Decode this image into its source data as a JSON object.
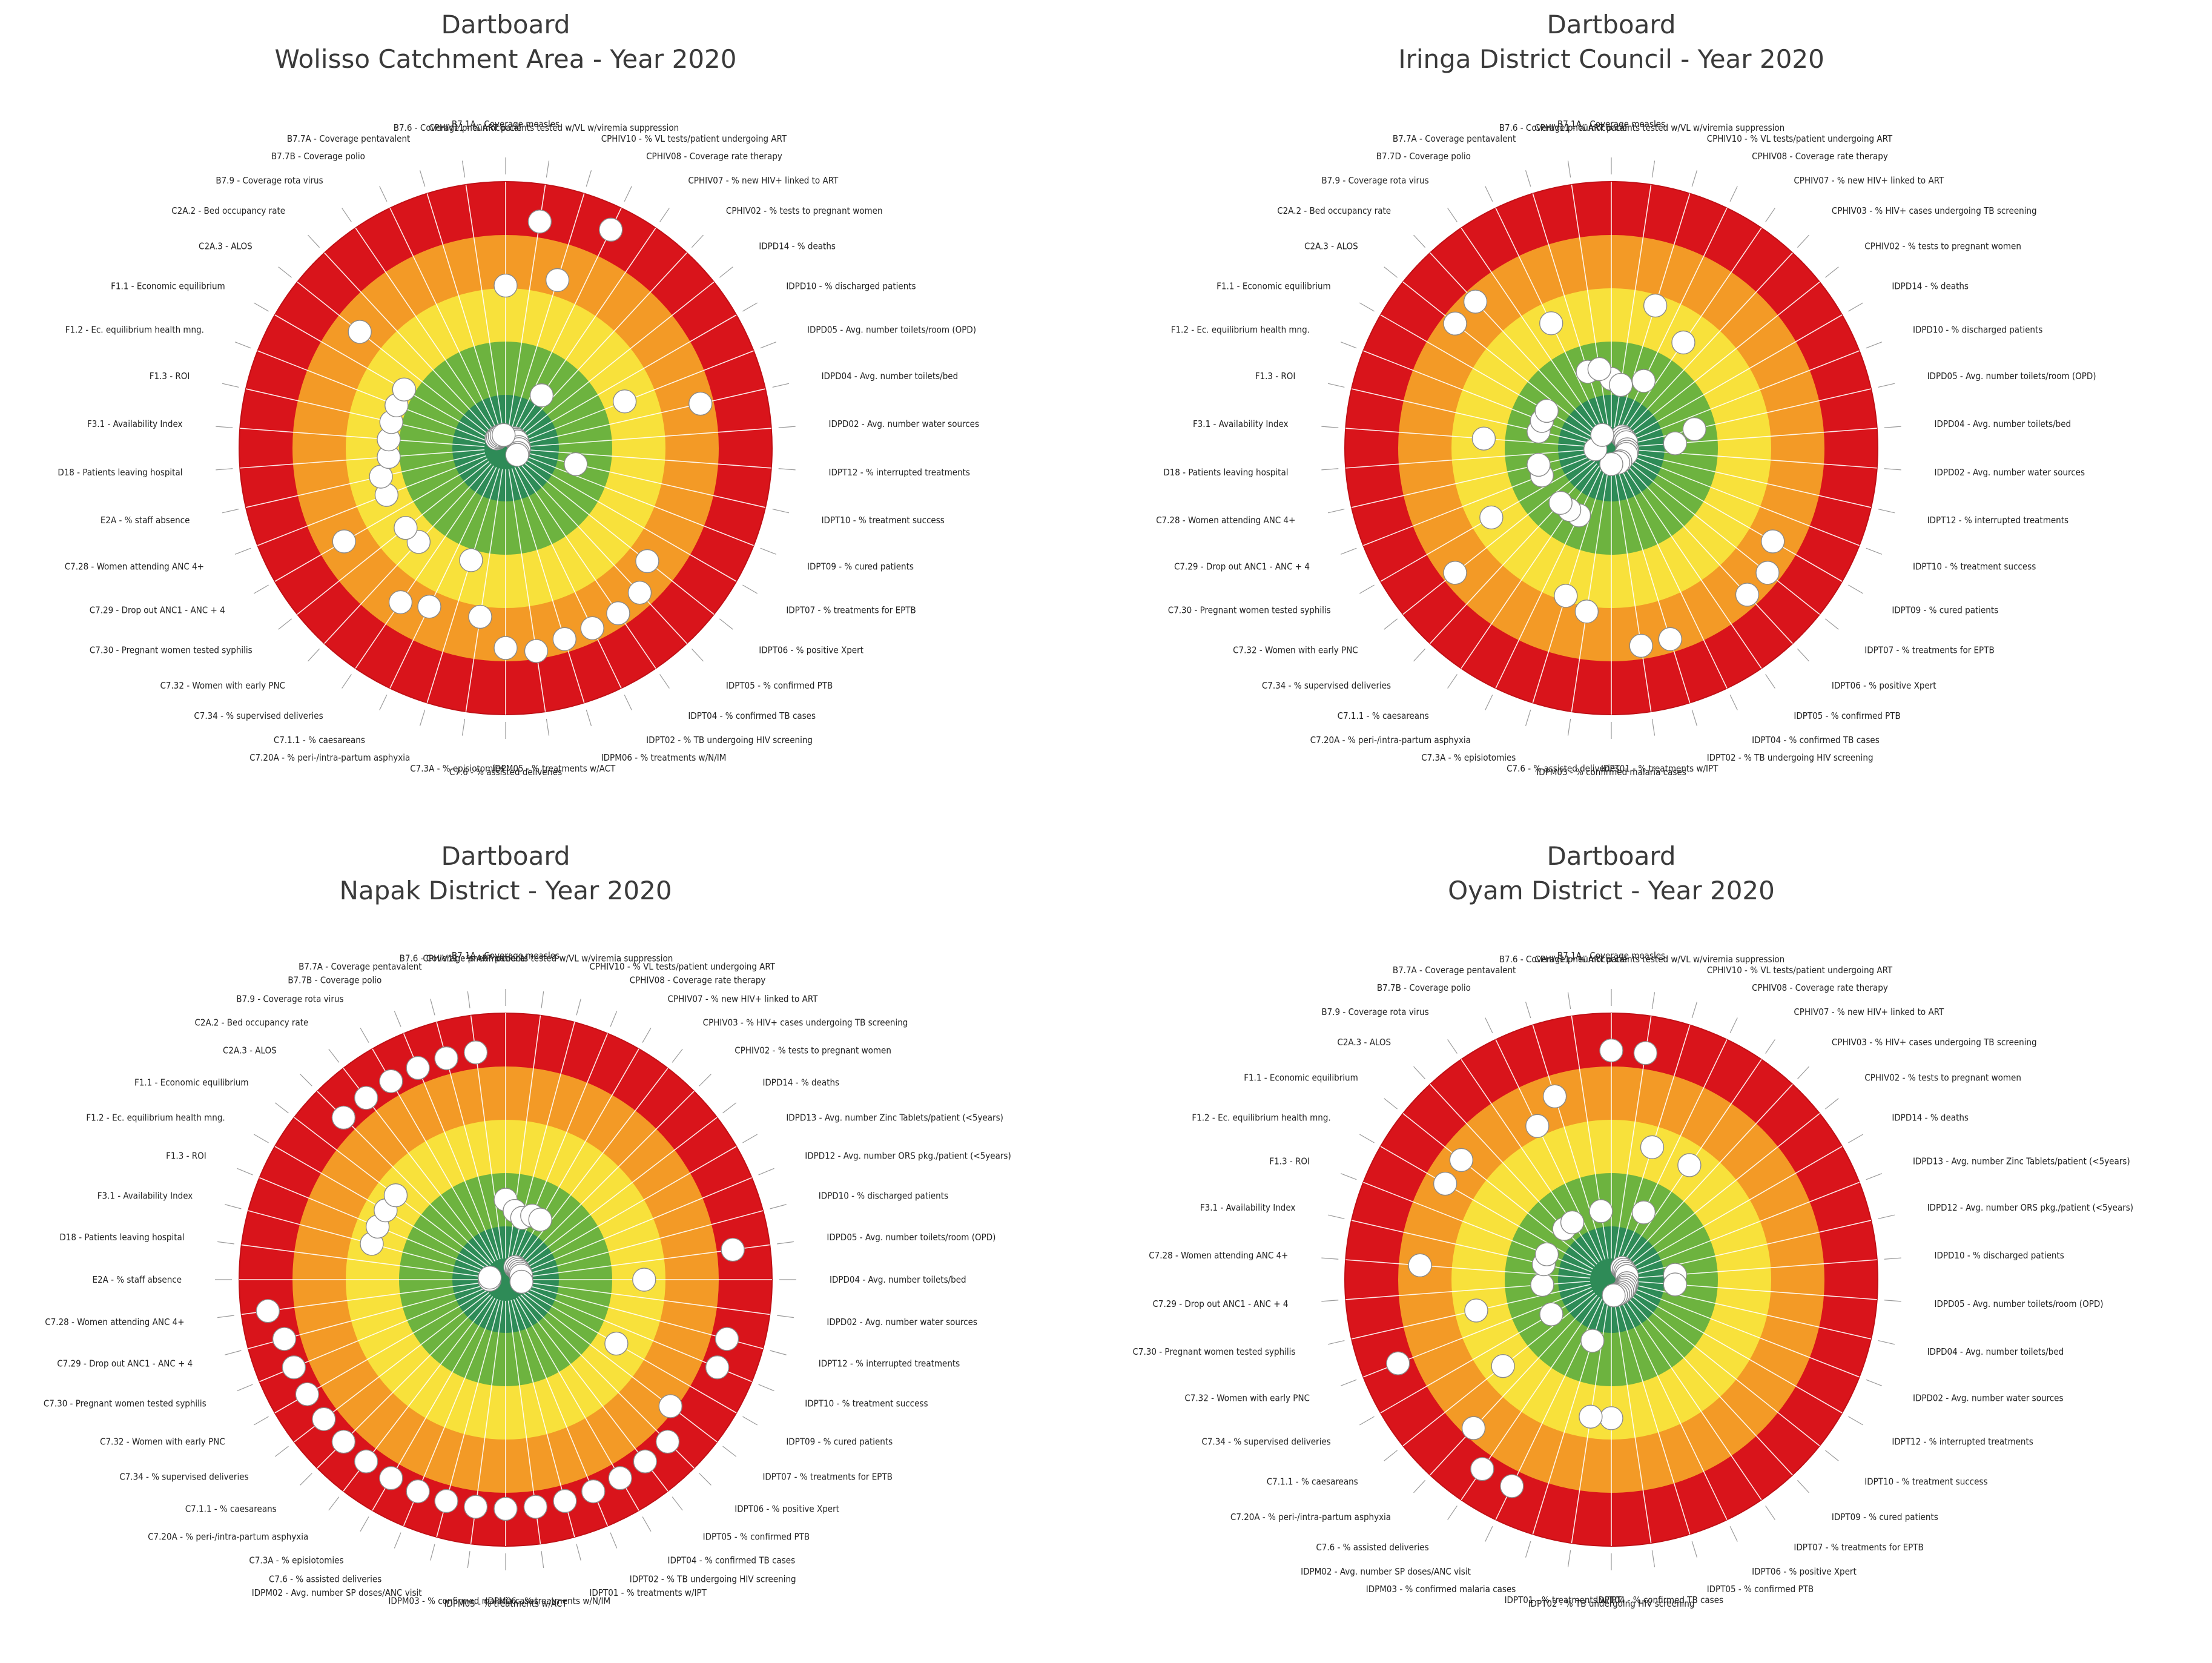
{
  "chart_data": [
    {
      "type": "dartboard",
      "title": "Dartboard",
      "subtitle": "Wolisso Catchment Area - Year 2020",
      "ring_colors": [
        "#d9141b",
        "#f39a26",
        "#f8e13b",
        "#6db33f",
        "#2e8b57"
      ],
      "ring_scale": "0 = center (best, green) ... 5 = outer edge (worst, red)",
      "indicators": [
        {
          "label": "B7.1A - Coverage measles",
          "value": 3.05
        },
        {
          "label": "CPHIV11 - % ART patients tested w/VL w/viremia suppression",
          "value": 4.3
        },
        {
          "label": "CPHIV10 - % VL tests/patient undergoing ART",
          "value": 3.3
        },
        {
          "label": "CPHIV08 - Coverage rate therapy",
          "value": 4.55
        },
        {
          "label": "CPHIV07 - % new HIV+ linked to ART",
          "value": 1.2
        },
        {
          "label": "CPHIV02 - % tests to pregnant women",
          "value": 0.25
        },
        {
          "label": "IDPD14 - % deaths",
          "value": 0.25
        },
        {
          "label": "IDPD10 - % discharged patients",
          "value": 0.25
        },
        {
          "label": "IDPD05 - Avg. number toilets/room (OPD)",
          "value": 2.4
        },
        {
          "label": "IDPD04 - Avg. number toilets/bed",
          "value": 3.75
        },
        {
          "label": "IDPD02 - Avg. number water sources",
          "value": 0.25
        },
        {
          "label": "IDPT12 - % interrupted treatments",
          "value": 0.25
        },
        {
          "label": "IDPT10 - % treatment success",
          "value": 1.35
        },
        {
          "label": "IDPT09 - % cured patients",
          "value": 0.25
        },
        {
          "label": "IDPT07 - % treatments for EPTB",
          "value": 0.25
        },
        {
          "label": "IDPT06 - % positive Xpert",
          "value": 3.4
        },
        {
          "label": "IDPT05 - % confirmed PTB",
          "value": 3.7
        },
        {
          "label": "IDPT04 - % confirmed TB cases",
          "value": 3.75
        },
        {
          "label": "IDPT02 - % TB undergoing HIV screening",
          "value": 3.75
        },
        {
          "label": "IDPM06 - % treatments w/N/IM",
          "value": 3.75
        },
        {
          "label": "IDPM05 - % treatments w/ACT",
          "value": 3.85
        },
        {
          "label": "C7.6 - % assisted deliveries",
          "value": 3.75
        },
        {
          "label": "C7.3A - % episiotomies",
          "value": 3.2
        },
        {
          "label": "C7.20A - % peri-/intra-partum asphyxia",
          "value": 2.2
        },
        {
          "label": "C7.1.1 - % caesareans",
          "value": 3.3
        },
        {
          "label": "C7.34 - % supervised deliveries",
          "value": 3.5
        },
        {
          "label": "C7.32 - Women with early PNC",
          "value": 2.4
        },
        {
          "label": "C7.30 - Pregnant women tested syphilis",
          "value": 2.4
        },
        {
          "label": "C7.29 - Drop out ANC1 - ANC + 4",
          "value": 3.5
        },
        {
          "label": "C7.28 - Women attending ANC 4+",
          "value": 2.4
        },
        {
          "label": "E2A - % staff absence",
          "value": 2.4
        },
        {
          "label": "D18 - Patients leaving hospital",
          "value": 2.2
        },
        {
          "label": "F3.1 - Availability Index",
          "value": 2.2
        },
        {
          "label": "F1.3 - ROI",
          "value": 2.2
        },
        {
          "label": "F1.2 - Ec. equilibrium health mng.",
          "value": 2.2
        },
        {
          "label": "F1.1 - Economic equilibrium",
          "value": 2.2
        },
        {
          "label": "C2A.3 - ALOS",
          "value": 3.5
        },
        {
          "label": "C2A.2 - Bed occupancy rate",
          "value": 0.25
        },
        {
          "label": "B7.9 - Coverage rota virus",
          "value": 0.25
        },
        {
          "label": "B7.7B - Coverage polio",
          "value": 0.25
        },
        {
          "label": "B7.7A - Coverage pentavalent",
          "value": 0.25
        },
        {
          "label": "B7.6 - Coverage pneumococcal",
          "value": 0.25
        }
      ]
    },
    {
      "type": "dartboard",
      "title": "Dartboard",
      "subtitle": "Iringa District Council - Year 2020",
      "ring_colors": [
        "#d9141b",
        "#f39a26",
        "#f8e13b",
        "#6db33f",
        "#2e8b57"
      ],
      "indicators": [
        {
          "label": "B7.1A - Coverage measles",
          "value": 1.3
        },
        {
          "label": "CPHIV11 - % ART patients tested w/VL w/viremia suppression",
          "value": 1.2
        },
        {
          "label": "CPHIV10 - % VL tests/patient undergoing ART",
          "value": 2.8
        },
        {
          "label": "CPHIV08 - Coverage rate therapy",
          "value": 1.4
        },
        {
          "label": "CPHIV07 - % new HIV+ linked to ART",
          "value": 2.4
        },
        {
          "label": "CPHIV03 - % HIV+ cases undergoing TB screening",
          "value": 0.3
        },
        {
          "label": "CPHIV02 - % tests to pregnant women",
          "value": 0.3
        },
        {
          "label": "IDPD14 - % deaths",
          "value": 0.3
        },
        {
          "label": "IDPD10 - % discharged patients",
          "value": 0.3
        },
        {
          "label": "IDPD05 - Avg. number toilets/room (OPD)",
          "value": 1.6
        },
        {
          "label": "IDPD04 - Avg. number toilets/bed",
          "value": 1.2
        },
        {
          "label": "IDPD02 - Avg. number water sources",
          "value": 0.3
        },
        {
          "label": "IDPT12 - % interrupted treatments",
          "value": 0.3
        },
        {
          "label": "IDPT10 - % treatment success",
          "value": 0.3
        },
        {
          "label": "IDPT09 - % cured patients",
          "value": 3.5
        },
        {
          "label": "IDPT07 - % treatments for EPTB",
          "value": 3.75
        },
        {
          "label": "IDPT06 - % positive Xpert",
          "value": 3.75
        },
        {
          "label": "IDPT05 - % confirmed PTB",
          "value": 0.3
        },
        {
          "label": "IDPT04 - % confirmed TB cases",
          "value": 0.3
        },
        {
          "label": "IDPT02 - % TB undergoing HIV screening",
          "value": 3.75
        },
        {
          "label": "IDPT01 - % treatments w/IPT",
          "value": 3.75
        },
        {
          "label": "IDPM03 - % confirmed malaria cases",
          "value": 0.3
        },
        {
          "label": "C7.6 - % assisted deliveries",
          "value": 3.1
        },
        {
          "label": "C7.3A - % episiotomies",
          "value": 2.9
        },
        {
          "label": "C7.20A - % peri-/intra-partum asphyxia",
          "value": 1.4
        },
        {
          "label": "C7.1.1 - % caesareans",
          "value": 1.4
        },
        {
          "label": "C7.34 - % supervised deliveries",
          "value": 1.4
        },
        {
          "label": "C7.32 - Women with early PNC",
          "value": 3.75
        },
        {
          "label": "C7.30 - Pregnant women tested syphilis",
          "value": 2.6
        },
        {
          "label": "C7.29 - Drop out ANC1 - ANC + 4",
          "value": 1.4
        },
        {
          "label": "C7.28 - Women attending ANC 4+",
          "value": 1.4
        },
        {
          "label": "D18 - Patients leaving hospital",
          "value": 0.3
        },
        {
          "label": "F3.1 - Availability Index",
          "value": 2.4
        },
        {
          "label": "F1.3 - ROI",
          "value": 1.4
        },
        {
          "label": "F1.2 - Ec. equilibrium health mng.",
          "value": 1.4
        },
        {
          "label": "F1.1 - Economic equilibrium",
          "value": 1.4
        },
        {
          "label": "C2A.3 - ALOS",
          "value": 3.75
        },
        {
          "label": "C2A.2 - Bed occupancy rate",
          "value": 3.75
        },
        {
          "label": "B7.9 - Coverage rota virus",
          "value": 0.3
        },
        {
          "label": "B7.7D - Coverage polio",
          "value": 2.6
        },
        {
          "label": "B7.7A - Coverage pentavalent",
          "value": 1.5
        },
        {
          "label": "B7.6 - Coverage pneumococcal",
          "value": 1.5
        }
      ]
    },
    {
      "type": "dartboard",
      "title": "Dartboard",
      "subtitle": "Napak District - Year 2020",
      "ring_colors": [
        "#d9141b",
        "#f39a26",
        "#f8e13b",
        "#6db33f",
        "#2e8b57"
      ],
      "indicators": [
        {
          "label": "B7.1A - Coverage measles",
          "value": 1.5
        },
        {
          "label": "CPHIV11 - % ART patients tested w/VL w/viremia suppression",
          "value": 1.3
        },
        {
          "label": "CPHIV10 - % VL tests/patient undergoing ART",
          "value": 1.2
        },
        {
          "label": "CPHIV08 - Coverage rate therapy",
          "value": 1.3
        },
        {
          "label": "CPHIV07 - % new HIV+ linked to ART",
          "value": 1.3
        },
        {
          "label": "CPHIV03 - % HIV+ cases undergoing TB screening",
          "value": 0.3
        },
        {
          "label": "CPHIV02 - % tests to pregnant women",
          "value": 0.3
        },
        {
          "label": "IDPD14 - % deaths",
          "value": 0.3
        },
        {
          "label": "IDPD13 - Avg. number Zinc Tablets/patient (<5years)",
          "value": 0.3
        },
        {
          "label": "IDPD12 - Avg. number ORS pkg./patient (<5years)",
          "value": 0.3
        },
        {
          "label": "IDPD10 - % discharged patients",
          "value": 0.3
        },
        {
          "label": "IDPD05 - Avg. number toilets/room (OPD)",
          "value": 4.3
        },
        {
          "label": "IDPD04 - Avg. number toilets/bed",
          "value": 2.6
        },
        {
          "label": "IDPD02 - Avg. number water sources",
          "value": 0.3
        },
        {
          "label": "IDPT12 - % interrupted treatments",
          "value": 4.3
        },
        {
          "label": "IDPT10 - % treatment success",
          "value": 4.3
        },
        {
          "label": "IDPT09 - % cured patients",
          "value": 2.4
        },
        {
          "label": "IDPT07 - % treatments for EPTB",
          "value": 3.9
        },
        {
          "label": "IDPT06 - % positive Xpert",
          "value": 4.3
        },
        {
          "label": "IDPT05 - % confirmed PTB",
          "value": 4.3
        },
        {
          "label": "IDPT04 - % confirmed TB cases",
          "value": 4.3
        },
        {
          "label": "IDPT02 - % TB undergoing HIV screening",
          "value": 4.3
        },
        {
          "label": "IDPT01 - % treatments w/IPT",
          "value": 4.3
        },
        {
          "label": "IDPM06 - % treatments w/N/IM",
          "value": 4.3
        },
        {
          "label": "IDPM05 - % treatments w/ACT",
          "value": 4.3
        },
        {
          "label": "IDPM03 - % confirmed malaria cases",
          "value": 4.3
        },
        {
          "label": "IDPM02 - Avg. number SP doses/ANC visit",
          "value": 4.3
        },
        {
          "label": "C7.6 - % assisted deliveries",
          "value": 4.3
        },
        {
          "label": "C7.3A - % episiotomies",
          "value": 4.3
        },
        {
          "label": "C7.20A - % peri-/intra-partum asphyxia",
          "value": 4.3
        },
        {
          "label": "C7.1.1 - % caesareans",
          "value": 4.3
        },
        {
          "label": "C7.34 - % supervised deliveries",
          "value": 4.3
        },
        {
          "label": "C7.32 - Women with early PNC",
          "value": 4.3
        },
        {
          "label": "C7.30 - Pregnant women tested syphilis",
          "value": 4.3
        },
        {
          "label": "C7.29 - Drop out ANC1 - ANC + 4",
          "value": 4.3
        },
        {
          "label": "C7.28 - Women attending ANC 4+",
          "value": 4.5
        },
        {
          "label": "E2A - % staff absence",
          "value": 0.3
        },
        {
          "label": "D18 - Patients leaving hospital",
          "value": 0.3
        },
        {
          "label": "F3.1 - Availability Index",
          "value": 2.6
        },
        {
          "label": "F1.3 - ROI",
          "value": 2.6
        },
        {
          "label": "F1.2 - Ec. equilibrium health mng.",
          "value": 2.6
        },
        {
          "label": "F1.1 - Economic equilibrium",
          "value": 2.6
        },
        {
          "label": "C2A.3 - ALOS",
          "value": 4.3
        },
        {
          "label": "C2A.2 - Bed occupancy rate",
          "value": 4.3
        },
        {
          "label": "B7.9 - Coverage rota virus",
          "value": 4.3
        },
        {
          "label": "B7.7B - Coverage polio",
          "value": 4.3
        },
        {
          "label": "B7.7A - Coverage pentavalent",
          "value": 4.3
        },
        {
          "label": "B7.6 - Coverage pneumococcal",
          "value": 4.3
        }
      ]
    },
    {
      "type": "dartboard",
      "title": "Dartboard",
      "subtitle": "Oyam District - Year 2020",
      "ring_colors": [
        "#d9141b",
        "#f39a26",
        "#f8e13b",
        "#6db33f",
        "#2e8b57"
      ],
      "indicators": [
        {
          "label": "B7.1A - Coverage measles",
          "value": 4.3
        },
        {
          "label": "CPHIV11 - % ART patients tested w/VL w/viremia suppression",
          "value": 4.3
        },
        {
          "label": "CPHIV10 - % VL tests/patient undergoing ART",
          "value": 2.6
        },
        {
          "label": "CPHIV08 - Coverage rate therapy",
          "value": 1.4
        },
        {
          "label": "CPHIV07 - % new HIV+ linked to ART",
          "value": 2.6
        },
        {
          "label": "CPHIV03 - % HIV+ cases undergoing TB screening",
          "value": 0.3
        },
        {
          "label": "CPHIV02 - % tests to pregnant women",
          "value": 0.3
        },
        {
          "label": "IDPD14 - % deaths",
          "value": 0.3
        },
        {
          "label": "IDPD13 - Avg. number Zinc Tablets/patient (<5years)",
          "value": 0.3
        },
        {
          "label": "IDPD12 - Avg. number ORS pkg./patient (<5years)",
          "value": 0.3
        },
        {
          "label": "IDPD10 - % discharged patients",
          "value": 1.2
        },
        {
          "label": "IDPD05 - Avg. number toilets/room (OPD)",
          "value": 1.2
        },
        {
          "label": "IDPD04 - Avg. number toilets/bed",
          "value": 0.3
        },
        {
          "label": "IDPD02 - Avg. number water sources",
          "value": 0.3
        },
        {
          "label": "IDPT12 - % interrupted treatments",
          "value": 0.3
        },
        {
          "label": "IDPT10 - % treatment success",
          "value": 0.3
        },
        {
          "label": "IDPT09 - % cured patients",
          "value": 0.3
        },
        {
          "label": "IDPT07 - % treatments for EPTB",
          "value": 0.3
        },
        {
          "label": "IDPT06 - % positive Xpert",
          "value": 0.3
        },
        {
          "label": "IDPT05 - % confirmed PTB",
          "value": 0.3
        },
        {
          "label": "IDPT04 - % confirmed TB cases",
          "value": 0.3
        },
        {
          "label": "IDPT02 - % TB undergoing HIV screening",
          "value": 2.6
        },
        {
          "label": "IDPT01 - % treatments w/IPT",
          "value": 2.6
        },
        {
          "label": "IDPM03 - % confirmed malaria cases",
          "value": 1.2
        },
        {
          "label": "IDPM02 - Avg. number SP doses/ANC visit",
          "value": 4.3
        },
        {
          "label": "C7.6 - % assisted deliveries",
          "value": 4.3
        },
        {
          "label": "C7.20A - % peri-/intra-partum asphyxia",
          "value": 3.8
        },
        {
          "label": "C7.1.1 - % caesareans",
          "value": 2.6
        },
        {
          "label": "C7.34 - % supervised deliveries",
          "value": 1.3
        },
        {
          "label": "C7.32 - Women with early PNC",
          "value": 4.3
        },
        {
          "label": "C7.30 - Pregnant women tested syphilis",
          "value": 2.6
        },
        {
          "label": "C7.29 - Drop out ANC1 - ANC + 4",
          "value": 1.3
        },
        {
          "label": "C7.28 - Women attending ANC 4+",
          "value": 3.6
        },
        {
          "label": "F3.1 - Availability Index",
          "value": 1.3
        },
        {
          "label": "F1.3 - ROI",
          "value": 1.3
        },
        {
          "label": "F1.2 - Ec. equilibrium health mng.",
          "value": 3.6
        },
        {
          "label": "F1.1 - Economic equilibrium",
          "value": 3.6
        },
        {
          "label": "C2A.3 - ALOS",
          "value": 1.3
        },
        {
          "label": "B7.9 - Coverage rota virus",
          "value": 1.3
        },
        {
          "label": "B7.7B - Coverage polio",
          "value": 3.2
        },
        {
          "label": "B7.7A - Coverage pentavalent",
          "value": 3.6
        },
        {
          "label": "B7.6 - Coverage pneumococcal",
          "value": 1.3
        }
      ]
    }
  ]
}
